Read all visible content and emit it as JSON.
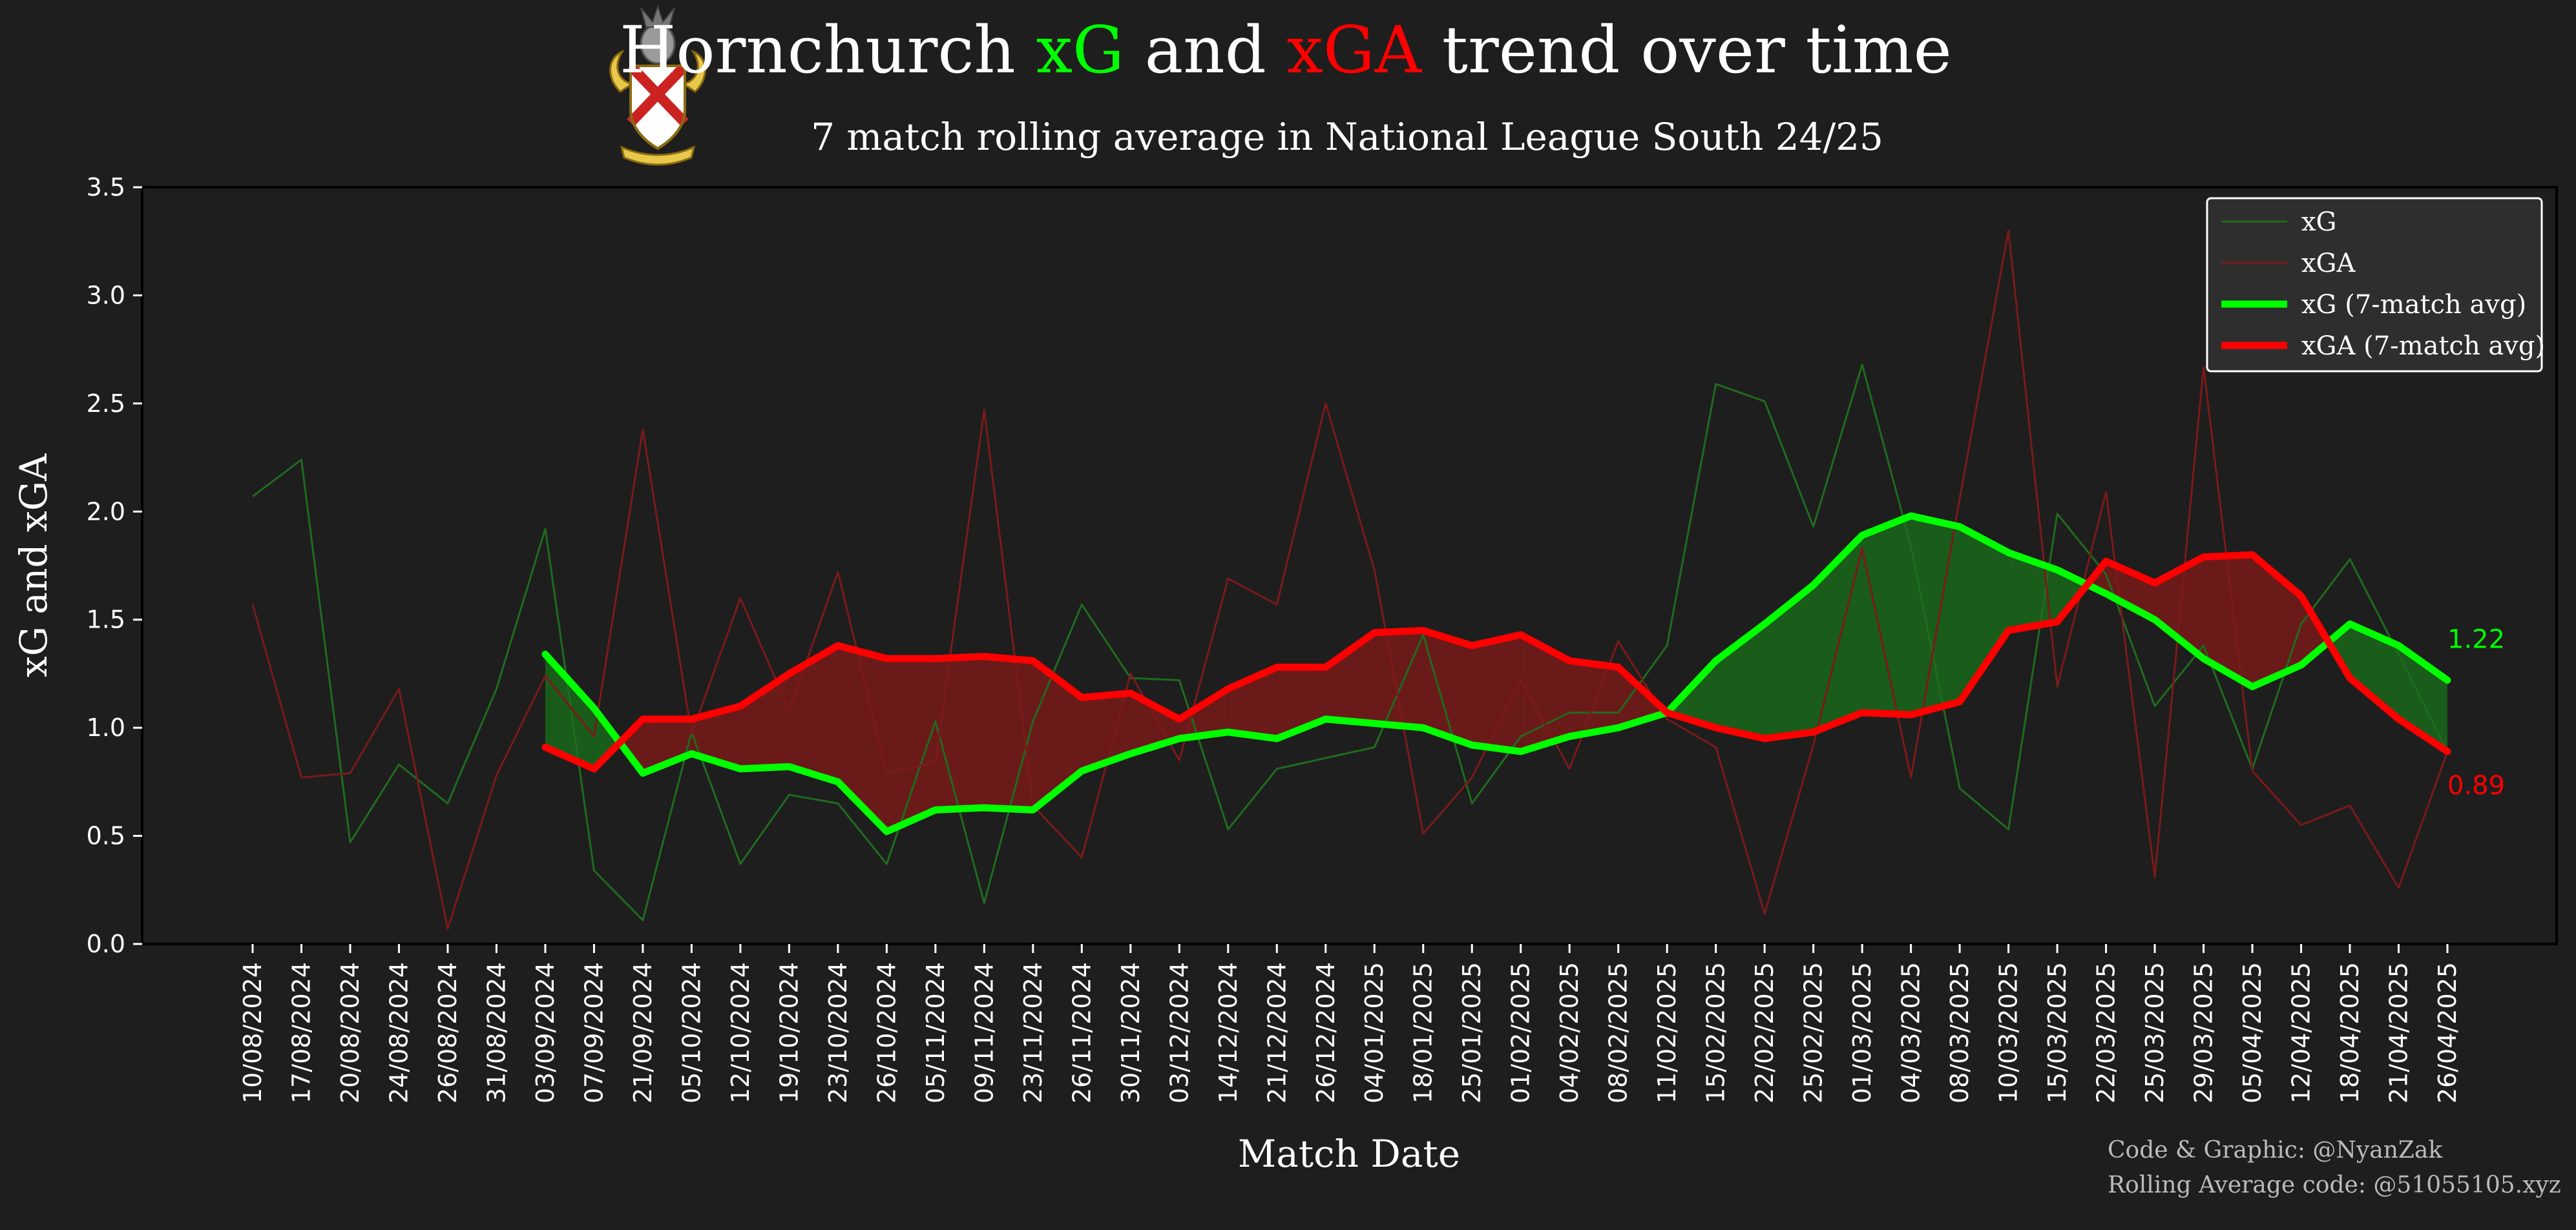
{
  "chart_data": {
    "type": "line",
    "title": {
      "parts": [
        {
          "text": "Hornchurch ",
          "color": "#ffffff"
        },
        {
          "text": "xG",
          "color": "#00ff00"
        },
        {
          "text": " and ",
          "color": "#ffffff"
        },
        {
          "text": "xGA",
          "color": "#ff0000"
        },
        {
          "text": " trend over time",
          "color": "#ffffff"
        }
      ]
    },
    "subtitle": "7 match rolling average in National League South 24/25",
    "xlabel": "Match Date",
    "ylabel": "xG and xGA",
    "ylim": [
      0,
      3.5
    ],
    "yticks": [
      "0.0",
      "0.5",
      "1.0",
      "1.5",
      "2.0",
      "2.5",
      "3.0",
      "3.5"
    ],
    "grid": false,
    "legend_position": "top-right",
    "categories": [
      "10/08/2024",
      "17/08/2024",
      "20/08/2024",
      "24/08/2024",
      "26/08/2024",
      "31/08/2024",
      "03/09/2024",
      "07/09/2024",
      "21/09/2024",
      "05/10/2024",
      "12/10/2024",
      "19/10/2024",
      "23/10/2024",
      "26/10/2024",
      "05/11/2024",
      "09/11/2024",
      "23/11/2024",
      "26/11/2024",
      "30/11/2024",
      "03/12/2024",
      "14/12/2024",
      "21/12/2024",
      "26/12/2024",
      "04/01/2025",
      "18/01/2025",
      "25/01/2025",
      "01/02/2025",
      "04/02/2025",
      "08/02/2025",
      "11/02/2025",
      "15/02/2025",
      "22/02/2025",
      "25/02/2025",
      "01/03/2025",
      "04/03/2025",
      "08/03/2025",
      "10/03/2025",
      "15/03/2025",
      "22/03/2025",
      "25/03/2025",
      "29/03/2025",
      "05/04/2025",
      "12/04/2025",
      "18/04/2025",
      "21/04/2025",
      "26/04/2025"
    ],
    "series": [
      {
        "name": "xG",
        "color": "#1f6b1f",
        "role": "raw",
        "values": [
          2.07,
          2.24,
          0.47,
          0.83,
          0.65,
          1.18,
          1.92,
          0.34,
          0.11,
          0.98,
          0.37,
          0.69,
          0.65,
          0.37,
          1.03,
          0.19,
          1.03,
          1.57,
          1.23,
          1.22,
          0.53,
          0.81,
          0.86,
          0.91,
          1.43,
          0.65,
          0.96,
          1.07,
          1.07,
          1.38,
          2.59,
          2.51,
          1.93,
          2.68,
          1.84,
          0.72,
          0.53,
          1.99,
          1.71,
          1.1,
          1.38,
          0.81,
          1.48,
          1.78,
          1.34,
          0.89
        ]
      },
      {
        "name": "xGA",
        "color": "#7a1a1a",
        "role": "raw",
        "values": [
          1.57,
          0.77,
          0.79,
          1.18,
          0.07,
          0.78,
          1.24,
          0.96,
          2.38,
          0.97,
          1.6,
          1.08,
          1.72,
          0.79,
          0.84,
          2.47,
          0.64,
          0.4,
          1.25,
          0.85,
          1.69,
          1.57,
          2.5,
          1.73,
          0.51,
          0.77,
          1.22,
          0.81,
          1.4,
          1.04,
          0.91,
          0.14,
          0.92,
          1.83,
          0.77,
          2.06,
          3.3,
          1.19,
          2.09,
          0.31,
          2.67,
          0.8,
          0.55,
          0.64,
          0.26,
          0.89
        ]
      },
      {
        "name": "xG (7-match avg)",
        "color": "#00ff00",
        "role": "rolling",
        "values": [
          null,
          null,
          null,
          null,
          null,
          null,
          1.34,
          1.09,
          0.79,
          0.88,
          0.81,
          0.82,
          0.75,
          0.52,
          0.62,
          0.63,
          0.62,
          0.8,
          0.88,
          0.95,
          0.98,
          0.95,
          1.04,
          1.02,
          1.0,
          0.92,
          0.89,
          0.96,
          1.0,
          1.07,
          1.31,
          1.48,
          1.66,
          1.89,
          1.98,
          1.93,
          1.81,
          1.73,
          1.62,
          1.5,
          1.32,
          1.19,
          1.29,
          1.48,
          1.38,
          1.22
        ]
      },
      {
        "name": "xGA (7-match avg)",
        "color": "#ff0000",
        "role": "rolling",
        "values": [
          null,
          null,
          null,
          null,
          null,
          null,
          0.91,
          0.81,
          1.04,
          1.04,
          1.1,
          1.25,
          1.38,
          1.32,
          1.32,
          1.33,
          1.31,
          1.14,
          1.16,
          1.04,
          1.18,
          1.28,
          1.28,
          1.44,
          1.45,
          1.38,
          1.43,
          1.31,
          1.28,
          1.07,
          1.0,
          0.95,
          0.98,
          1.07,
          1.06,
          1.12,
          1.45,
          1.49,
          1.77,
          1.67,
          1.79,
          1.8,
          1.61,
          1.23,
          1.04,
          0.89
        ]
      }
    ],
    "fill_colors": {
      "xg_above": "#1a5c1a",
      "xga_above": "#6b1a1a"
    },
    "end_labels": [
      {
        "text": "1.22",
        "color": "#00ff00",
        "value": 1.22
      },
      {
        "text": "0.89",
        "color": "#ff0000",
        "value": 0.89
      }
    ]
  },
  "credits": [
    "Code & Graphic: @NyanZak",
    "Rolling Average code: @51055105.xyz"
  ],
  "logo": {
    "name": "hornchurch-crest",
    "primary_color": "#cc2222",
    "secondary_color": "#e8c84a"
  }
}
